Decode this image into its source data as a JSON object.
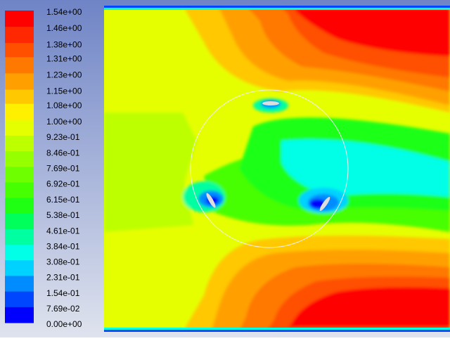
{
  "chart_data": {
    "type": "contour",
    "colorbar_ticks": [
      {
        "value": 1.54,
        "label": "1.54e+00"
      },
      {
        "value": 1.46,
        "label": "1.46e+00"
      },
      {
        "value": 1.38,
        "label": "1.38e+00"
      },
      {
        "value": 1.31,
        "label": "1.31e+00"
      },
      {
        "value": 1.23,
        "label": "1.23e+00"
      },
      {
        "value": 1.15,
        "label": "1.15e+00"
      },
      {
        "value": 1.08,
        "label": "1.08e+00"
      },
      {
        "value": 1.0,
        "label": "1.00e+00"
      },
      {
        "value": 0.923,
        "label": "9.23e-01"
      },
      {
        "value": 0.846,
        "label": "8.46e-01"
      },
      {
        "value": 0.769,
        "label": "7.69e-01"
      },
      {
        "value": 0.692,
        "label": "6.92e-01"
      },
      {
        "value": 0.615,
        "label": "6.15e-01"
      },
      {
        "value": 0.538,
        "label": "5.38e-01"
      },
      {
        "value": 0.461,
        "label": "4.61e-01"
      },
      {
        "value": 0.384,
        "label": "3.84e-01"
      },
      {
        "value": 0.308,
        "label": "3.08e-01"
      },
      {
        "value": 0.231,
        "label": "2.31e-01"
      },
      {
        "value": 0.154,
        "label": "1.54e-01"
      },
      {
        "value": 0.0769,
        "label": "7.69e-02"
      },
      {
        "value": 0,
        "label": "0.00e+00"
      }
    ],
    "colors": [
      "#ff0000",
      "#ff2800",
      "#ff5000",
      "#ff7800",
      "#ffa000",
      "#ffc800",
      "#fff000",
      "#e6ff00",
      "#beff00",
      "#96ff00",
      "#6eff00",
      "#46ff00",
      "#1eff14",
      "#00ff5a",
      "#00ffa0",
      "#00ffe6",
      "#00d2ff",
      "#008cff",
      "#0046ff",
      "#0000ff"
    ]
  }
}
